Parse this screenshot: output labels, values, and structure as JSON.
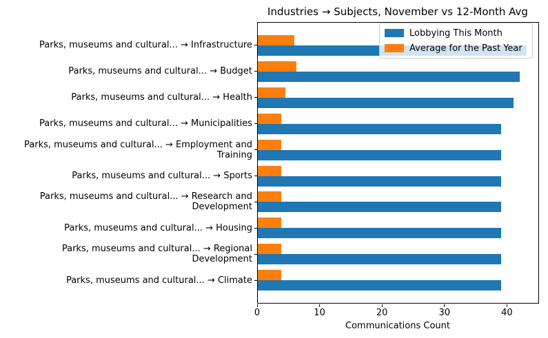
{
  "chart_data": {
    "type": "bar",
    "orientation": "horizontal",
    "title": "Industries → Subjects, November vs 12-Month Avg",
    "xlabel": "Communications Count",
    "xlim": [
      0,
      45.15
    ],
    "xticks": [
      0,
      10,
      20,
      30,
      40
    ],
    "grid": false,
    "legend_position": "upper right",
    "categories": [
      "Parks, museums and cultural... → Infrastructure",
      "Parks, museums and cultural... → Budget",
      "Parks, museums and cultural... → Health",
      "Parks, museums and cultural... → Municipalities",
      "Parks, museums and cultural... → Employment and\nTraining",
      "Parks, museums and cultural... → Sports",
      "Parks, museums and cultural... → Research and\nDevelopment",
      "Parks, museums and cultural... → Housing",
      "Parks, museums and cultural... → Regional\nDevelopment",
      "Parks, museums and cultural... → Climate"
    ],
    "series": [
      {
        "name": "Lobbying This Month",
        "color": "#1f77b4",
        "values": [
          43,
          42,
          41,
          39,
          39,
          39,
          39,
          39,
          39,
          39
        ]
      },
      {
        "name": "Average for the Past Year",
        "color": "#ff7f0e",
        "values": [
          5.8,
          6.2,
          4.4,
          3.8,
          3.8,
          3.8,
          3.8,
          3.8,
          3.8,
          3.8
        ]
      }
    ]
  }
}
